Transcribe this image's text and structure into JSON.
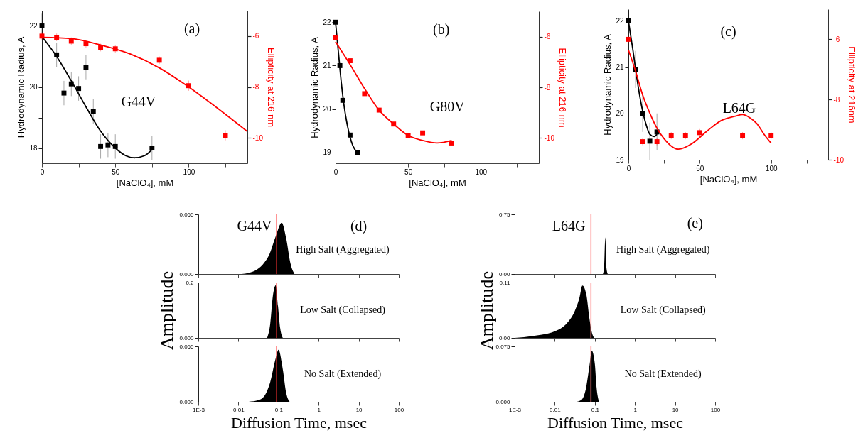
{
  "chart_data": [
    {
      "type": "scatter",
      "xlabel": "[NaClO₄], mM",
      "ylabel": "Hydrodynamic Radius, A",
      "y2label": "Ellipticity at 216 nm",
      "xlim": [
        0,
        140
      ],
      "xticks": [
        0,
        {
          "value": 25,
          "label": null
        },
        50,
        {
          "value": 75,
          "label": null
        },
        100,
        {
          "value": 125,
          "label": null
        }
      ],
      "ylim": [
        17.5,
        22.5
      ],
      "yticks": [
        18,
        {
          "value": 19,
          "label": null
        },
        20,
        {
          "value": 21,
          "label": null
        },
        22
      ],
      "y2lim": [
        -11,
        -5
      ],
      "y2ticks": [
        -10,
        -8,
        -6
      ],
      "annotations": [
        "(a)",
        "G44V"
      ],
      "series": [
        {
          "marker": "square",
          "color": "#000000",
          "x": [
            0,
            10,
            15,
            20,
            25,
            30,
            35,
            40,
            45,
            50,
            75
          ],
          "values": [
            22,
            21.05,
            19.8,
            20.1,
            19.95,
            20.65,
            19.2,
            18.05,
            18.1,
            18.05,
            18.0
          ],
          "errors": [
            0.4,
            0.4,
            0.4,
            0.4,
            0.4,
            0.4,
            0.4,
            0.4,
            0.4,
            0.4,
            0.4
          ]
        },
        {
          "marker": "square",
          "color": "#ff0000",
          "axis": "y2",
          "x": [
            0,
            10,
            20,
            30,
            40,
            50,
            80,
            100,
            125
          ],
          "values": [
            -6.0,
            -6.05,
            -6.2,
            -6.3,
            -6.45,
            -6.5,
            -6.95,
            -7.95,
            -9.9
          ],
          "errors": [
            0.15,
            0.15,
            0.15,
            0.15,
            0.15,
            0.15,
            0.15,
            0.2,
            0.2
          ]
        },
        {
          "type": "line",
          "color": "#000000",
          "x": [
            0,
            10,
            20,
            30,
            40,
            50,
            57,
            63,
            70,
            75
          ],
          "values": [
            21.65,
            21.0,
            20.2,
            19.35,
            18.55,
            18.0,
            17.75,
            17.68,
            17.75,
            17.95
          ]
        },
        {
          "type": "line",
          "color": "#ff0000",
          "axis": "y2",
          "x": [
            0,
            20,
            40,
            60,
            80,
            100,
            120,
            140
          ],
          "values": [
            -6.05,
            -6.1,
            -6.35,
            -6.7,
            -7.25,
            -8.0,
            -8.85,
            -9.75
          ]
        }
      ]
    },
    {
      "type": "scatter",
      "xlabel": "[NaClO₄], mM",
      "ylabel": "Hydrodynamic Radius, A",
      "y2label": "Ellipticity at 216 nm",
      "xlim": [
        0,
        140
      ],
      "xticks": [
        0,
        {
          "value": 25,
          "label": null
        },
        50,
        {
          "value": 75,
          "label": null
        },
        100,
        {
          "value": 125,
          "label": null
        }
      ],
      "ylim": [
        18.75,
        22.25
      ],
      "yticks": [
        19,
        20,
        21,
        22
      ],
      "y2lim": [
        -11,
        -5
      ],
      "y2ticks": [
        -10,
        -8,
        -6
      ],
      "annotations": [
        "(b)",
        "G80V"
      ],
      "series": [
        {
          "marker": "square",
          "color": "#000000",
          "x": [
            0,
            3,
            5,
            10,
            15
          ],
          "values": [
            22,
            21,
            20.2,
            19.4,
            19.0
          ]
        },
        {
          "marker": "square",
          "color": "#ff0000",
          "axis": "y2",
          "x": [
            0,
            10,
            20,
            30,
            40,
            50,
            60,
            80
          ],
          "values": [
            -6.05,
            -6.95,
            -8.25,
            -8.9,
            -9.45,
            -9.9,
            -9.8,
            -10.2
          ]
        },
        {
          "type": "line",
          "color": "#000000",
          "x": [
            0,
            2,
            4,
            6,
            8,
            10,
            12,
            15
          ],
          "values": [
            22.0,
            21.3,
            20.6,
            20.05,
            19.65,
            19.35,
            19.15,
            19.0
          ]
        },
        {
          "type": "line",
          "color": "#ff0000",
          "axis": "y2",
          "x": [
            0,
            10,
            20,
            30,
            40,
            50,
            60,
            70,
            80
          ],
          "values": [
            -6.2,
            -7.1,
            -8.05,
            -8.9,
            -9.45,
            -9.9,
            -10.1,
            -10.2,
            -10.1
          ]
        }
      ]
    },
    {
      "type": "scatter",
      "xlabel": "[NaClO₄], mM",
      "ylabel": "Hydrodynamic Radius, A",
      "y2label": "Ellipticity at 216nm",
      "xlim": [
        0,
        140
      ],
      "xticks": [
        0,
        {
          "value": 25,
          "label": null
        },
        50,
        {
          "value": 75,
          "label": null
        },
        100,
        {
          "value": 125,
          "label": null
        }
      ],
      "ylim": [
        19,
        22.25
      ],
      "yticks": [
        19,
        20,
        21,
        22
      ],
      "y2lim": [
        -10,
        -5
      ],
      "y2ticks": [
        -10,
        -8,
        -6
      ],
      "annotations": [
        "(c)",
        "L64G"
      ],
      "series": [
        {
          "marker": "square",
          "color": "#000000",
          "x": [
            0,
            5,
            10,
            15,
            20
          ],
          "values": [
            22,
            20.95,
            20,
            19.4,
            19.6
          ],
          "errors": [
            0.2,
            0.4,
            0.4,
            0.4,
            0.4
          ]
        },
        {
          "marker": "square",
          "color": "#ff0000",
          "axis": "y2",
          "x": [
            0,
            10,
            20,
            30,
            40,
            50,
            80,
            100
          ],
          "values": [
            -6.0,
            -9.4,
            -9.4,
            -9.2,
            -9.2,
            -9.1,
            -9.2,
            -9.2
          ],
          "errors": [
            0.12,
            0.12,
            0.12,
            0.12,
            0.12,
            0.12,
            0.12,
            0.12
          ]
        },
        {
          "type": "line",
          "color": "#000000",
          "x": [
            0,
            3,
            6,
            9,
            12,
            15,
            18,
            20
          ],
          "values": [
            22.0,
            21.4,
            20.75,
            20.2,
            19.8,
            19.55,
            19.5,
            19.55
          ]
        },
        {
          "type": "line",
          "color": "#ff0000",
          "axis": "y2",
          "x": [
            0,
            5,
            10,
            15,
            20,
            25,
            35,
            45,
            55,
            65,
            75,
            80,
            85,
            90,
            95,
            100
          ],
          "values": [
            -6.35,
            -7.05,
            -7.85,
            -8.45,
            -8.95,
            -9.3,
            -9.65,
            -9.45,
            -9.05,
            -8.7,
            -8.55,
            -8.5,
            -8.6,
            -8.8,
            -9.15,
            -9.45
          ]
        }
      ]
    },
    {
      "type": "area",
      "color": "#000000",
      "log": "x",
      "tick_labels": "y",
      "xlim": [
        0.001,
        100
      ],
      "xticks": [
        0.001,
        0.01,
        0.1,
        1,
        10,
        100
      ],
      "ylim": [
        0,
        0.065
      ],
      "yticks": [
        {
          "value": 0,
          "label": "0.000"
        },
        0.065
      ],
      "ref_lines": [
        {
          "axis": "x",
          "value": 0.09,
          "color": "#ff3333"
        }
      ],
      "annotations": [
        "G44V",
        "(d)",
        "High Salt (Aggregated)"
      ],
      "x": [
        0.012,
        0.018,
        0.027,
        0.04,
        0.06,
        0.085,
        0.12,
        0.155,
        0.2,
        0.25
      ],
      "values": [
        0,
        0.0012,
        0.004,
        0.01,
        0.022,
        0.041,
        0.056,
        0.039,
        0.011,
        0
      ]
    },
    {
      "type": "area",
      "color": "#000000",
      "log": "x",
      "tick_labels": "y",
      "ylabel": "Amplitude",
      "xlim": [
        0.001,
        100
      ],
      "xticks": [
        0.001,
        0.01,
        0.1,
        1,
        10,
        100
      ],
      "ylim": [
        0,
        0.2
      ],
      "yticks": [
        {
          "value": 0,
          "label": "0.000"
        },
        0.2
      ],
      "ref_lines": [
        {
          "axis": "x",
          "value": 0.09,
          "color": "#ff3333"
        }
      ],
      "annotations": [
        "Low Salt (Collapsed)"
      ],
      "x": [
        0.052,
        0.062,
        0.072,
        0.085,
        0.097,
        0.11,
        0.128
      ],
      "values": [
        0,
        0.05,
        0.15,
        0.19,
        0.115,
        0.035,
        0
      ]
    },
    {
      "type": "area",
      "color": "#000000",
      "log": "x",
      "xlabel": "Diffusion Time, msec",
      "xlim": [
        0.001,
        100
      ],
      "xticks": [
        {
          "value": 0.001,
          "label": "1E-3"
        },
        0.01,
        0.1,
        1,
        10,
        100
      ],
      "ylim": [
        0,
        0.065
      ],
      "yticks": [
        {
          "value": 0,
          "label": "0.000"
        },
        0.065
      ],
      "ref_lines": [
        {
          "axis": "x",
          "value": 0.09,
          "color": "#ff3333"
        }
      ],
      "annotations": [
        "No Salt (Extended)"
      ],
      "x": [
        0.018,
        0.032,
        0.046,
        0.062,
        0.085,
        0.1,
        0.128,
        0.156,
        0.19
      ],
      "values": [
        0,
        0.002,
        0.008,
        0.023,
        0.051,
        0.061,
        0.038,
        0.01,
        0
      ]
    },
    {
      "type": "area",
      "color": "#000000",
      "log": "x",
      "tick_labels": "y",
      "xlim": [
        0.001,
        100
      ],
      "xticks": [
        0.001,
        0.01,
        0.1,
        1,
        10,
        100
      ],
      "ylim": [
        0,
        0.75
      ],
      "yticks": [
        {
          "value": 0,
          "label": "0.00"
        },
        0.75
      ],
      "ref_lines": [
        {
          "axis": "x",
          "value": 0.08,
          "color": "#ff8080"
        }
      ],
      "annotations": [
        "L64G",
        "(e)",
        "High Salt (Aggregated)"
      ],
      "x": [
        0.159,
        0.17,
        0.182,
        0.194,
        0.21
      ],
      "values": [
        0,
        0.08,
        0.46,
        0.08,
        0
      ]
    },
    {
      "type": "area",
      "color": "#000000",
      "log": "x",
      "tick_labels": "y",
      "ylabel": "Amplitude",
      "xlim": [
        0.001,
        100
      ],
      "xticks": [
        0.001,
        0.01,
        0.1,
        1,
        10,
        100
      ],
      "ylim": [
        0,
        0.11
      ],
      "yticks": [
        {
          "value": 0,
          "label": "0.00"
        },
        0.11
      ],
      "ref_lines": [
        {
          "axis": "x",
          "value": 0.08,
          "color": "#ff8080"
        }
      ],
      "annotations": [
        "Low Salt (Collapsed)"
      ],
      "x": [
        0.001,
        0.0029,
        0.01,
        0.021,
        0.031,
        0.041,
        0.049,
        0.061,
        0.073,
        0.084,
        0.096
      ],
      "values": [
        0,
        0.004,
        0.013,
        0.031,
        0.052,
        0.079,
        0.104,
        0.087,
        0.039,
        0.011,
        0
      ]
    },
    {
      "type": "area",
      "color": "#000000",
      "log": "x",
      "xlabel": "Diffusion Time, msec",
      "xlim": [
        0.001,
        100
      ],
      "xticks": [
        {
          "value": 0.001,
          "label": "1E-3"
        },
        0.01,
        0.1,
        1,
        10,
        100
      ],
      "ylim": [
        0,
        0.075
      ],
      "yticks": [
        {
          "value": 0,
          "label": "0.000"
        },
        0.075
      ],
      "ref_lines": [
        {
          "axis": "x",
          "value": 0.08,
          "color": "#ff8080"
        }
      ],
      "annotations": [
        "No Salt (Extended)"
      ],
      "x": [
        0.034,
        0.047,
        0.061,
        0.073,
        0.084,
        0.1,
        0.11,
        0.127
      ],
      "values": [
        0,
        0.003,
        0.02,
        0.048,
        0.069,
        0.051,
        0.02,
        0
      ]
    }
  ]
}
